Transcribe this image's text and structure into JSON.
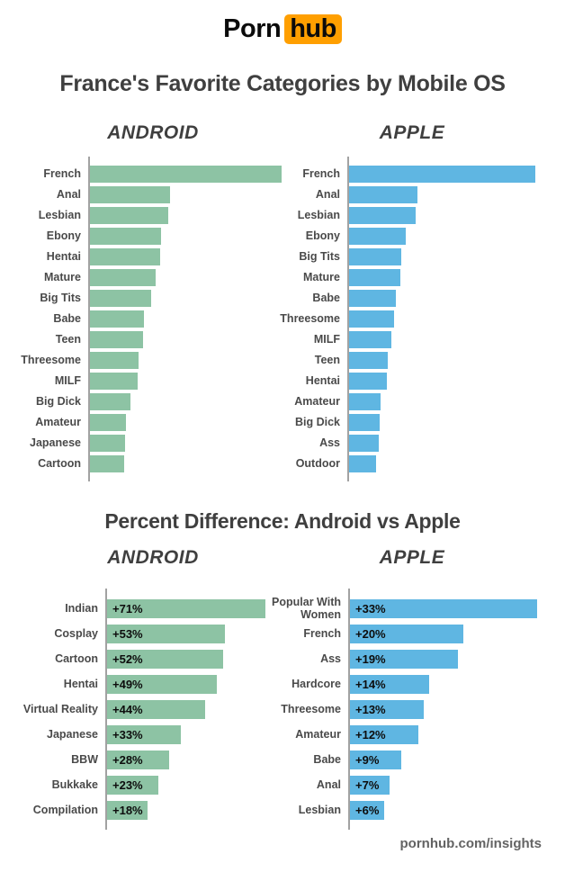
{
  "logo": {
    "text_black": "Porn",
    "text_badge": "hub"
  },
  "page_title": "France's Favorite Categories by Mobile OS",
  "top_section": {
    "android_header": "ANDROID",
    "apple_header": "APPLE"
  },
  "bottom_section": {
    "title": "Percent Difference: Android vs Apple",
    "android_header": "ANDROID",
    "apple_header": "APPLE"
  },
  "footer": {
    "text": "pornhub.com/insights"
  },
  "colors": {
    "android_bar": "#8dc3a4",
    "apple_bar": "#5fb6e2",
    "logo_orange": "#ff9f00",
    "heading_text": "#3f3f3f",
    "label_text": "#4a4a4a",
    "axis_line": "#a2a2a2"
  },
  "chart_data": [
    {
      "id": "android-top",
      "type": "bar",
      "orientation": "horizontal",
      "title": "ANDROID",
      "section": "France's Favorite Categories by Mobile OS",
      "bar_color": "#8dc3a4",
      "categories": [
        "French",
        "Anal",
        "Lesbian",
        "Ebony",
        "Hentai",
        "Mature",
        "Big Tits",
        "Babe",
        "Teen",
        "Threesome",
        "MILF",
        "Big Dick",
        "Amateur",
        "Japanese",
        "Cartoon"
      ],
      "values": [
        213,
        89,
        87,
        79,
        78,
        73,
        68,
        60,
        59,
        54,
        53,
        45,
        40,
        39,
        38
      ],
      "values_note": "relative bar lengths measured from image; chart shows no numeric axis",
      "grid": false,
      "legend": false
    },
    {
      "id": "apple-top",
      "type": "bar",
      "orientation": "horizontal",
      "title": "APPLE",
      "section": "France's Favorite Categories by Mobile OS",
      "bar_color": "#5fb6e2",
      "categories": [
        "French",
        "Anal",
        "Lesbian",
        "Ebony",
        "Big Tits",
        "Mature",
        "Babe",
        "Threesome",
        "MILF",
        "Teen",
        "Hentai",
        "Amateur",
        "Big Dick",
        "Ass",
        "Outdoor"
      ],
      "values": [
        207,
        76,
        74,
        63,
        58,
        57,
        52,
        50,
        47,
        43,
        42,
        35,
        34,
        33,
        30
      ],
      "values_note": "relative bar lengths measured from image; chart shows no numeric axis",
      "grid": false,
      "legend": false
    },
    {
      "id": "android-percent-diff",
      "type": "bar",
      "orientation": "horizontal",
      "title": "ANDROID",
      "section": "Percent Difference: Android vs Apple",
      "bar_color": "#8dc3a4",
      "categories": [
        "Indian",
        "Cosplay",
        "Cartoon",
        "Hentai",
        "Virtual Reality",
        "Japanese",
        "BBW",
        "Bukkake",
        "Compilation"
      ],
      "values": [
        71,
        53,
        52,
        49,
        44,
        33,
        28,
        23,
        18
      ],
      "labels": [
        "+71%",
        "+53%",
        "+52%",
        "+49%",
        "+44%",
        "+33%",
        "+28%",
        "+23%",
        "+18%"
      ],
      "values_unit": "percent",
      "grid": false,
      "legend": false
    },
    {
      "id": "apple-percent-diff",
      "type": "bar",
      "orientation": "horizontal",
      "title": "APPLE",
      "section": "Percent Difference: Android vs Apple",
      "bar_color": "#5fb6e2",
      "categories": [
        "Popular With Women",
        "French",
        "Ass",
        "Hardcore",
        "Threesome",
        "Amateur",
        "Babe",
        "Anal",
        "Lesbian"
      ],
      "values": [
        33,
        20,
        19,
        14,
        13,
        12,
        9,
        7,
        6
      ],
      "labels": [
        "+33%",
        "+20%",
        "+19%",
        "+14%",
        "+13%",
        "+12%",
        "+9%",
        "+7%",
        "+6%"
      ],
      "values_unit": "percent",
      "grid": false,
      "legend": false
    }
  ]
}
